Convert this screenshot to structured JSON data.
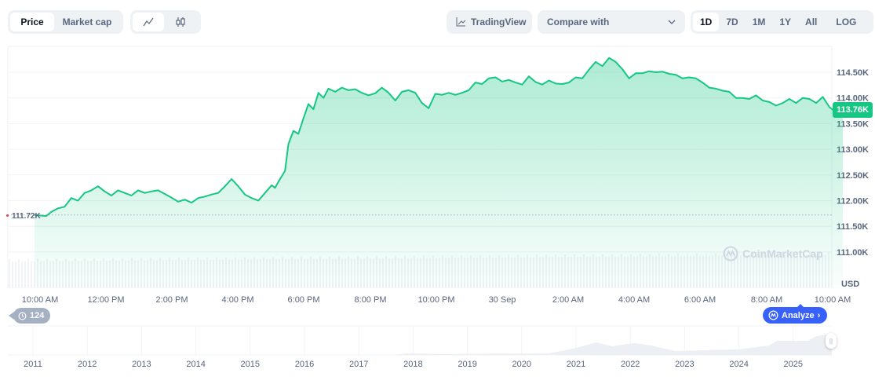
{
  "toolbar": {
    "view_tabs": [
      {
        "label": "Price",
        "active": true
      },
      {
        "label": "Market cap",
        "active": false
      }
    ],
    "chart_types": [
      {
        "icon": "line-chart-icon",
        "glyph": "⩘",
        "active": true
      },
      {
        "icon": "candlestick-icon",
        "glyph": "фф",
        "active": false
      }
    ],
    "tradingview_label": "TradingView",
    "compare_label": "Compare with",
    "timeframes": [
      {
        "label": "1D",
        "active": true
      },
      {
        "label": "7D",
        "active": false
      },
      {
        "label": "1M",
        "active": false
      },
      {
        "label": "1Y",
        "active": false
      },
      {
        "label": "All",
        "active": false
      }
    ],
    "log_label": "LOG",
    "more_label": "···"
  },
  "chart": {
    "current_price_label": "113.76K",
    "open_price_label": "111.72K",
    "currency_label": "USD",
    "watermark": "CoinMarketCap",
    "history_count": "124",
    "analyze_label": "Analyze",
    "colors": {
      "line": "#16c784",
      "fill_top": "#16c784",
      "up": "#16c784",
      "down": "#ea3943",
      "accent": "#3861fb"
    }
  },
  "navigator": {
    "years": [
      "2011",
      "2012",
      "2013",
      "2014",
      "2015",
      "2016",
      "2017",
      "2018",
      "2019",
      "2020",
      "2021",
      "2022",
      "2023",
      "2024",
      "2025"
    ]
  },
  "chart_data": {
    "type": "area",
    "title": "",
    "xlabel": "",
    "ylabel": "USD",
    "x_tick_labels": [
      "10:00 AM",
      "12:00 PM",
      "2:00 PM",
      "4:00 PM",
      "6:00 PM",
      "8:00 PM",
      "10:00 PM",
      "30 Sep",
      "2:00 AM",
      "4:00 AM",
      "6:00 AM",
      "8:00 AM",
      "10:00 AM"
    ],
    "y_tick_labels": [
      "111.00K",
      "111.50K",
      "112.00K",
      "112.50K",
      "113.00K",
      "113.50K",
      "114.00K",
      "114.50K"
    ],
    "y_ticks": [
      111000,
      111500,
      112000,
      112500,
      113000,
      113500,
      114000,
      114500
    ],
    "ylim": [
      110650,
      114850
    ],
    "grid": true,
    "legend": "none",
    "reference_line": {
      "label": "111.72K",
      "value": 111720,
      "style": "dotted"
    },
    "last_value": 113760,
    "series": [
      {
        "name": "Price",
        "x_hours_from_start": [
          0,
          0.35,
          0.5,
          0.7,
          0.9,
          1.1,
          1.3,
          1.5,
          1.7,
          1.9,
          2.1,
          2.3,
          2.5,
          2.7,
          2.9,
          3.1,
          3.3,
          3.5,
          3.7,
          3.9,
          4.1,
          4.3,
          4.5,
          4.7,
          4.9,
          5.1,
          5.3,
          5.5,
          5.7,
          5.9,
          6.1,
          6.3,
          6.5,
          6.7,
          6.9,
          7.1,
          7.2,
          7.35,
          7.5,
          7.6,
          7.75,
          7.9,
          8.05,
          8.2,
          8.35,
          8.5,
          8.65,
          8.8,
          9.0,
          9.2,
          9.4,
          9.6,
          9.8,
          10.0,
          10.2,
          10.4,
          10.6,
          10.8,
          11.0,
          11.2,
          11.4,
          11.6,
          11.8,
          12.0,
          12.2,
          12.4,
          12.6,
          12.8,
          13.0,
          13.2,
          13.4,
          13.6,
          13.8,
          14.0,
          14.2,
          14.4,
          14.6,
          14.8,
          15.0,
          15.2,
          15.4,
          15.6,
          15.8,
          16.0,
          16.2,
          16.4,
          16.6,
          16.8,
          17.0,
          17.2,
          17.4,
          17.6,
          17.8,
          18.0,
          18.2,
          18.4,
          18.6,
          18.8,
          19.0,
          19.2,
          19.4,
          19.6,
          19.8,
          20.0,
          20.2,
          20.4,
          20.6,
          20.8,
          21.0,
          21.2,
          21.4,
          21.6,
          21.8,
          22.0,
          22.2,
          22.4,
          22.6,
          22.8,
          23.0,
          23.2,
          23.4,
          23.6,
          23.8,
          24.0,
          24.2
        ],
        "values": [
          111720,
          111700,
          111780,
          111850,
          111880,
          112050,
          112000,
          112150,
          112200,
          112280,
          112180,
          112100,
          112200,
          112150,
          112100,
          112200,
          112150,
          112180,
          112200,
          112130,
          112060,
          111980,
          112020,
          111960,
          112050,
          112080,
          112120,
          112150,
          112280,
          112420,
          112280,
          112120,
          112050,
          112000,
          112150,
          112300,
          112250,
          112420,
          112580,
          113100,
          113360,
          113300,
          113600,
          113880,
          113780,
          114100,
          114000,
          114180,
          114120,
          114200,
          114150,
          114170,
          114100,
          114050,
          114090,
          114200,
          114100,
          113950,
          114120,
          114150,
          114100,
          113900,
          113800,
          114080,
          114060,
          114100,
          114060,
          114100,
          114150,
          114300,
          114270,
          114380,
          114400,
          114320,
          114350,
          114300,
          114260,
          114420,
          114310,
          114260,
          114340,
          114280,
          114270,
          114300,
          114400,
          114380,
          114550,
          114700,
          114620,
          114780,
          114700,
          114560,
          114380,
          114480,
          114480,
          114520,
          114500,
          114510,
          114470,
          114450,
          114380,
          114400,
          114380,
          114300,
          114200,
          114180,
          114140,
          114120,
          114000,
          114000,
          113980,
          114050,
          113950,
          113920,
          113850,
          113900,
          113980,
          113900,
          114000,
          113980,
          113900,
          114020,
          113820,
          113720,
          113760,
          113760
        ]
      }
    ],
    "navigator": {
      "type": "area",
      "x_tick_labels": [
        "2011",
        "2012",
        "2013",
        "2014",
        "2015",
        "2016",
        "2017",
        "2018",
        "2019",
        "2020",
        "2021",
        "2022",
        "2023",
        "2024",
        "2025"
      ]
    }
  }
}
